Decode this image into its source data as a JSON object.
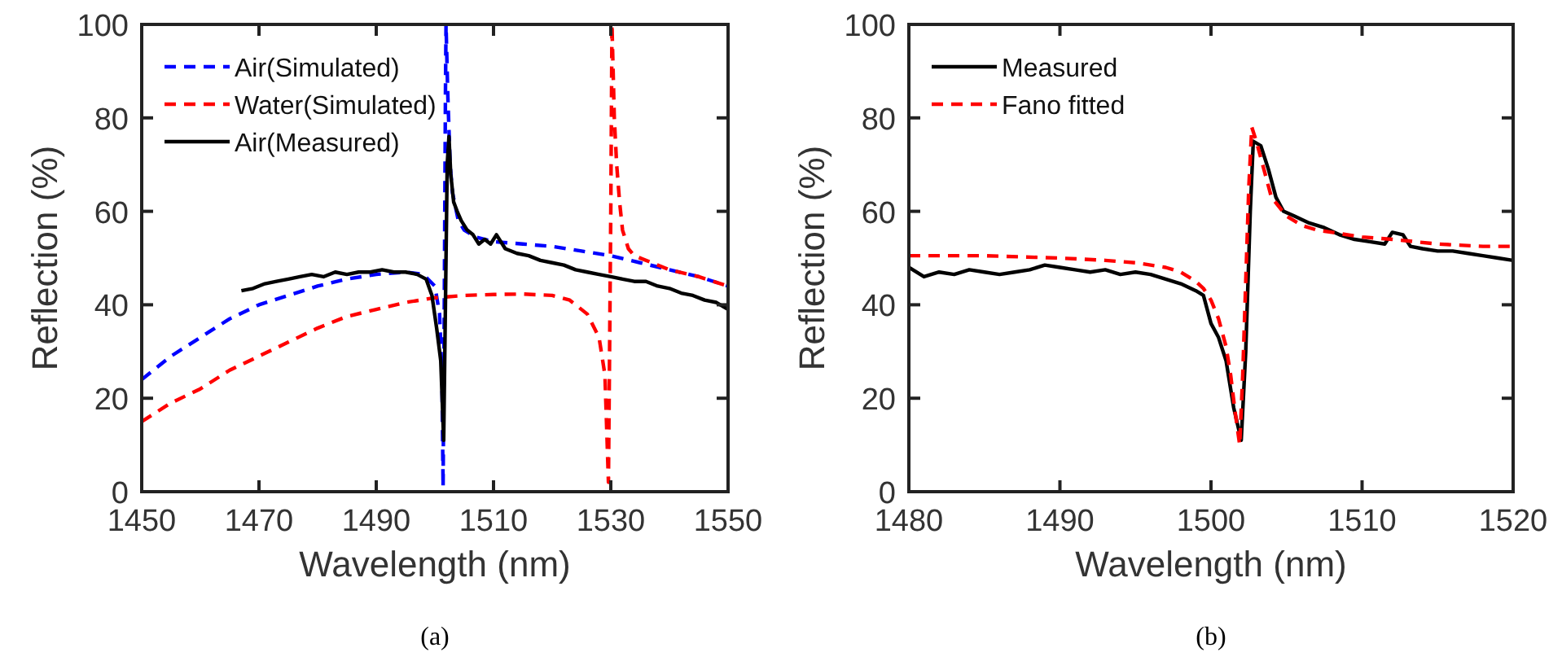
{
  "chart_data": [
    {
      "type": "line",
      "xlabel": "Wavelength (nm)",
      "ylabel": "Reflection (%)",
      "xlim": [
        1450,
        1550
      ],
      "ylim": [
        0,
        100
      ],
      "xticks": [
        1450,
        1470,
        1490,
        1510,
        1530,
        1550
      ],
      "yticks": [
        0,
        20,
        40,
        60,
        80,
        100
      ],
      "grid": false,
      "legend": "top left",
      "annotations": [
        "(a)"
      ],
      "series": [
        {
          "name": "Air(Simulated)",
          "color": "#0000ff",
          "line_style": "dashed",
          "x": [
            1450,
            1455,
            1460,
            1465,
            1470,
            1475,
            1480,
            1485,
            1490,
            1495,
            1498,
            1500,
            1500.8,
            1501.2,
            1501.4,
            1501.6,
            1501.8,
            1501.9,
            1502.2,
            1502.6,
            1503,
            1504,
            1505,
            1507,
            1510,
            1515,
            1520,
            1525,
            1530,
            1535,
            1540,
            1545,
            1550
          ],
          "values": [
            24,
            29,
            33,
            37,
            40,
            42,
            44,
            45.5,
            46.5,
            47,
            46.5,
            44,
            38,
            25,
            1,
            40,
            85,
            100,
            85,
            70,
            64,
            58,
            56,
            54.5,
            53.5,
            53,
            52.5,
            51.5,
            50.5,
            49,
            47.5,
            46,
            44
          ]
        },
        {
          "name": "Water(Simulated)",
          "color": "#ff0000",
          "line_style": "dashed",
          "x": [
            1450,
            1455,
            1460,
            1465,
            1470,
            1475,
            1480,
            1485,
            1490,
            1495,
            1500,
            1505,
            1510,
            1515,
            1520,
            1523,
            1526,
            1528,
            1529,
            1529.6,
            1530,
            1530.2,
            1530.6,
            1531,
            1531.5,
            1532,
            1533,
            1534,
            1537,
            1540,
            1545,
            1550
          ],
          "values": [
            15,
            19,
            22,
            26,
            29,
            32,
            35,
            37.5,
            39,
            40.5,
            41.5,
            42,
            42.2,
            42.3,
            42,
            41,
            38,
            33,
            25,
            2,
            60,
            100,
            80,
            70,
            62,
            56,
            52,
            50.5,
            49,
            47.5,
            46,
            44
          ]
        },
        {
          "name": "Air(Measured)",
          "color": "#000000",
          "line_style": "solid",
          "x": [
            1467,
            1469,
            1471,
            1473,
            1475,
            1477,
            1479,
            1481,
            1483,
            1485,
            1487,
            1489,
            1491,
            1493,
            1495,
            1497,
            1498.5,
            1499.5,
            1500.3,
            1501,
            1501.5,
            1501.8,
            1502.1,
            1502.4,
            1502.7,
            1503.2,
            1503.8,
            1504.5,
            1505.5,
            1506.5,
            1507.5,
            1508.5,
            1509.5,
            1510.5,
            1512,
            1514,
            1516,
            1518,
            1520,
            1522,
            1524,
            1526,
            1528,
            1530,
            1532,
            1534,
            1536,
            1538,
            1540,
            1542,
            1544,
            1546,
            1548,
            1550
          ],
          "values": [
            43,
            43.5,
            44.5,
            45,
            45.5,
            46,
            46.5,
            46,
            47,
            46.5,
            47,
            47,
            47.5,
            47,
            47,
            46.5,
            45.5,
            42,
            35,
            28,
            11,
            40,
            70,
            76,
            68,
            62,
            60,
            58,
            56,
            55,
            53,
            54,
            53,
            55,
            52,
            51,
            50.5,
            49.5,
            49,
            48.5,
            47.5,
            47,
            46.5,
            46,
            45.5,
            45,
            45,
            44,
            43.5,
            42.5,
            42,
            41,
            40.5,
            39
          ]
        }
      ]
    },
    {
      "type": "line",
      "xlabel": "Wavelength (nm)",
      "ylabel": "Reflection (%)",
      "xlim": [
        1480,
        1520
      ],
      "ylim": [
        0,
        100
      ],
      "xticks": [
        1480,
        1490,
        1500,
        1510,
        1520
      ],
      "yticks": [
        0,
        20,
        40,
        60,
        80,
        100
      ],
      "grid": false,
      "legend": "top left",
      "annotations": [
        "(b)"
      ],
      "series": [
        {
          "name": "Measured",
          "color": "#000000",
          "line_style": "solid",
          "x": [
            1480,
            1481,
            1482,
            1483,
            1484,
            1485,
            1486,
            1487,
            1488,
            1489,
            1490,
            1491,
            1492,
            1493,
            1494,
            1495,
            1496,
            1497,
            1498,
            1499,
            1499.5,
            1500,
            1500.5,
            1501,
            1501.5,
            1502,
            1502.3,
            1502.6,
            1502.8,
            1503.3,
            1503.8,
            1504.3,
            1504.8,
            1505.5,
            1506.5,
            1507.5,
            1508.5,
            1509.5,
            1510.5,
            1511.5,
            1512,
            1512.7,
            1513.2,
            1514,
            1515,
            1516,
            1517,
            1518,
            1519,
            1520
          ],
          "values": [
            48,
            46,
            47,
            46.5,
            47.5,
            47,
            46.5,
            47,
            47.5,
            48.5,
            48,
            47.5,
            47,
            47.5,
            46.5,
            47,
            46.5,
            45.5,
            44.5,
            43,
            42,
            36,
            33,
            28,
            18,
            11,
            30,
            60,
            75,
            74,
            69,
            63,
            60,
            59,
            57.5,
            56.5,
            55,
            54,
            53.5,
            53,
            55.5,
            55,
            52.5,
            52,
            51.5,
            51.5,
            51,
            50.5,
            50,
            49.5
          ]
        },
        {
          "name": "Fano fitted",
          "color": "#ff0000",
          "line_style": "dashed",
          "x": [
            1480,
            1485,
            1490,
            1493,
            1495,
            1497,
            1498,
            1499,
            1499.5,
            1500,
            1500.5,
            1501,
            1501.3,
            1501.6,
            1501.9,
            1502.1,
            1502.3,
            1502.5,
            1502.7,
            1503,
            1503.5,
            1504,
            1505,
            1506,
            1507,
            1508,
            1510,
            1512,
            1515,
            1518,
            1520
          ],
          "values": [
            50.5,
            50.5,
            50,
            49.5,
            49,
            48,
            47,
            45,
            43.5,
            41,
            37,
            31,
            25,
            17,
            10,
            25,
            45,
            65,
            78,
            75,
            69,
            63,
            59,
            57,
            56,
            55.5,
            54.5,
            54,
            53,
            52.5,
            52.5
          ]
        }
      ]
    }
  ]
}
